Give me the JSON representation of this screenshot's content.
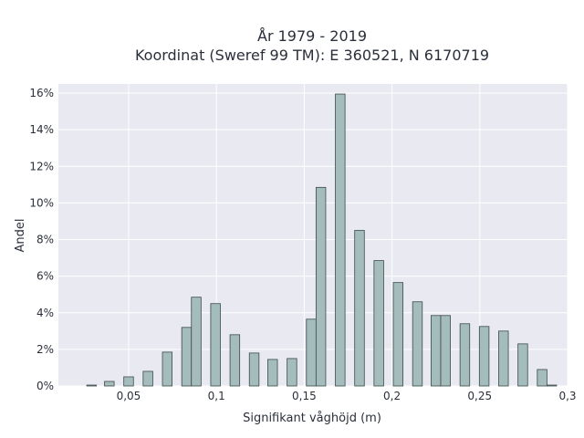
{
  "chart_data": {
    "type": "bar",
    "title_line1": "År 1979 - 2019",
    "title_line2": "Koordinat (Sweref 99 TM): E 360521, N 6170719",
    "xlabel": "Signifikant våghöjd (m)",
    "ylabel": "Andel",
    "xlim": [
      0.01,
      0.3
    ],
    "ylim": [
      0,
      16.5
    ],
    "x_ticks": [
      {
        "value": 0.05,
        "label": "0,05"
      },
      {
        "value": 0.1,
        "label": "0,1"
      },
      {
        "value": 0.15,
        "label": "0,15"
      },
      {
        "value": 0.2,
        "label": "0,2"
      },
      {
        "value": 0.25,
        "label": "0,25"
      },
      {
        "value": 0.3,
        "label": "0,3"
      }
    ],
    "y_ticks": [
      {
        "value": 0,
        "label": "0%"
      },
      {
        "value": 2,
        "label": "2%"
      },
      {
        "value": 4,
        "label": "4%"
      },
      {
        "value": 6,
        "label": "6%"
      },
      {
        "value": 8,
        "label": "8%"
      },
      {
        "value": 10,
        "label": "10%"
      },
      {
        "value": 12,
        "label": "12%"
      },
      {
        "value": 14,
        "label": "14%"
      },
      {
        "value": 16,
        "label": "16%"
      }
    ],
    "bar_width": 0.0055,
    "grid": true,
    "colors": {
      "bar_fill": "#a4bcbc",
      "bar_stroke": "#3c4a4a",
      "plot_bg": "#e9e9f1",
      "grid": "#ffffff",
      "text": "#2a2f3a"
    },
    "bars": [
      {
        "x": 0.0289,
        "value": 0.05
      },
      {
        "x": 0.039,
        "value": 0.25
      },
      {
        "x": 0.05,
        "value": 0.5
      },
      {
        "x": 0.061,
        "value": 0.8
      },
      {
        "x": 0.072,
        "value": 1.85
      },
      {
        "x": 0.083,
        "value": 3.2
      },
      {
        "x": 0.0885,
        "value": 4.85
      },
      {
        "x": 0.0995,
        "value": 4.5
      },
      {
        "x": 0.1105,
        "value": 2.8
      },
      {
        "x": 0.1215,
        "value": 1.8
      },
      {
        "x": 0.132,
        "value": 1.45
      },
      {
        "x": 0.143,
        "value": 1.5
      },
      {
        "x": 0.154,
        "value": 3.65
      },
      {
        "x": 0.1595,
        "value": 10.85
      },
      {
        "x": 0.1705,
        "value": 15.95
      },
      {
        "x": 0.1815,
        "value": 8.5
      },
      {
        "x": 0.1925,
        "value": 6.85
      },
      {
        "x": 0.2035,
        "value": 5.65
      },
      {
        "x": 0.2145,
        "value": 4.6
      },
      {
        "x": 0.225,
        "value": 3.85
      },
      {
        "x": 0.2305,
        "value": 3.85
      },
      {
        "x": 0.2415,
        "value": 3.4
      },
      {
        "x": 0.2525,
        "value": 3.25
      },
      {
        "x": 0.2635,
        "value": 3.0
      },
      {
        "x": 0.2745,
        "value": 2.3
      },
      {
        "x": 0.2855,
        "value": 0.9
      },
      {
        "x": 0.291,
        "value": 0.05
      }
    ]
  }
}
